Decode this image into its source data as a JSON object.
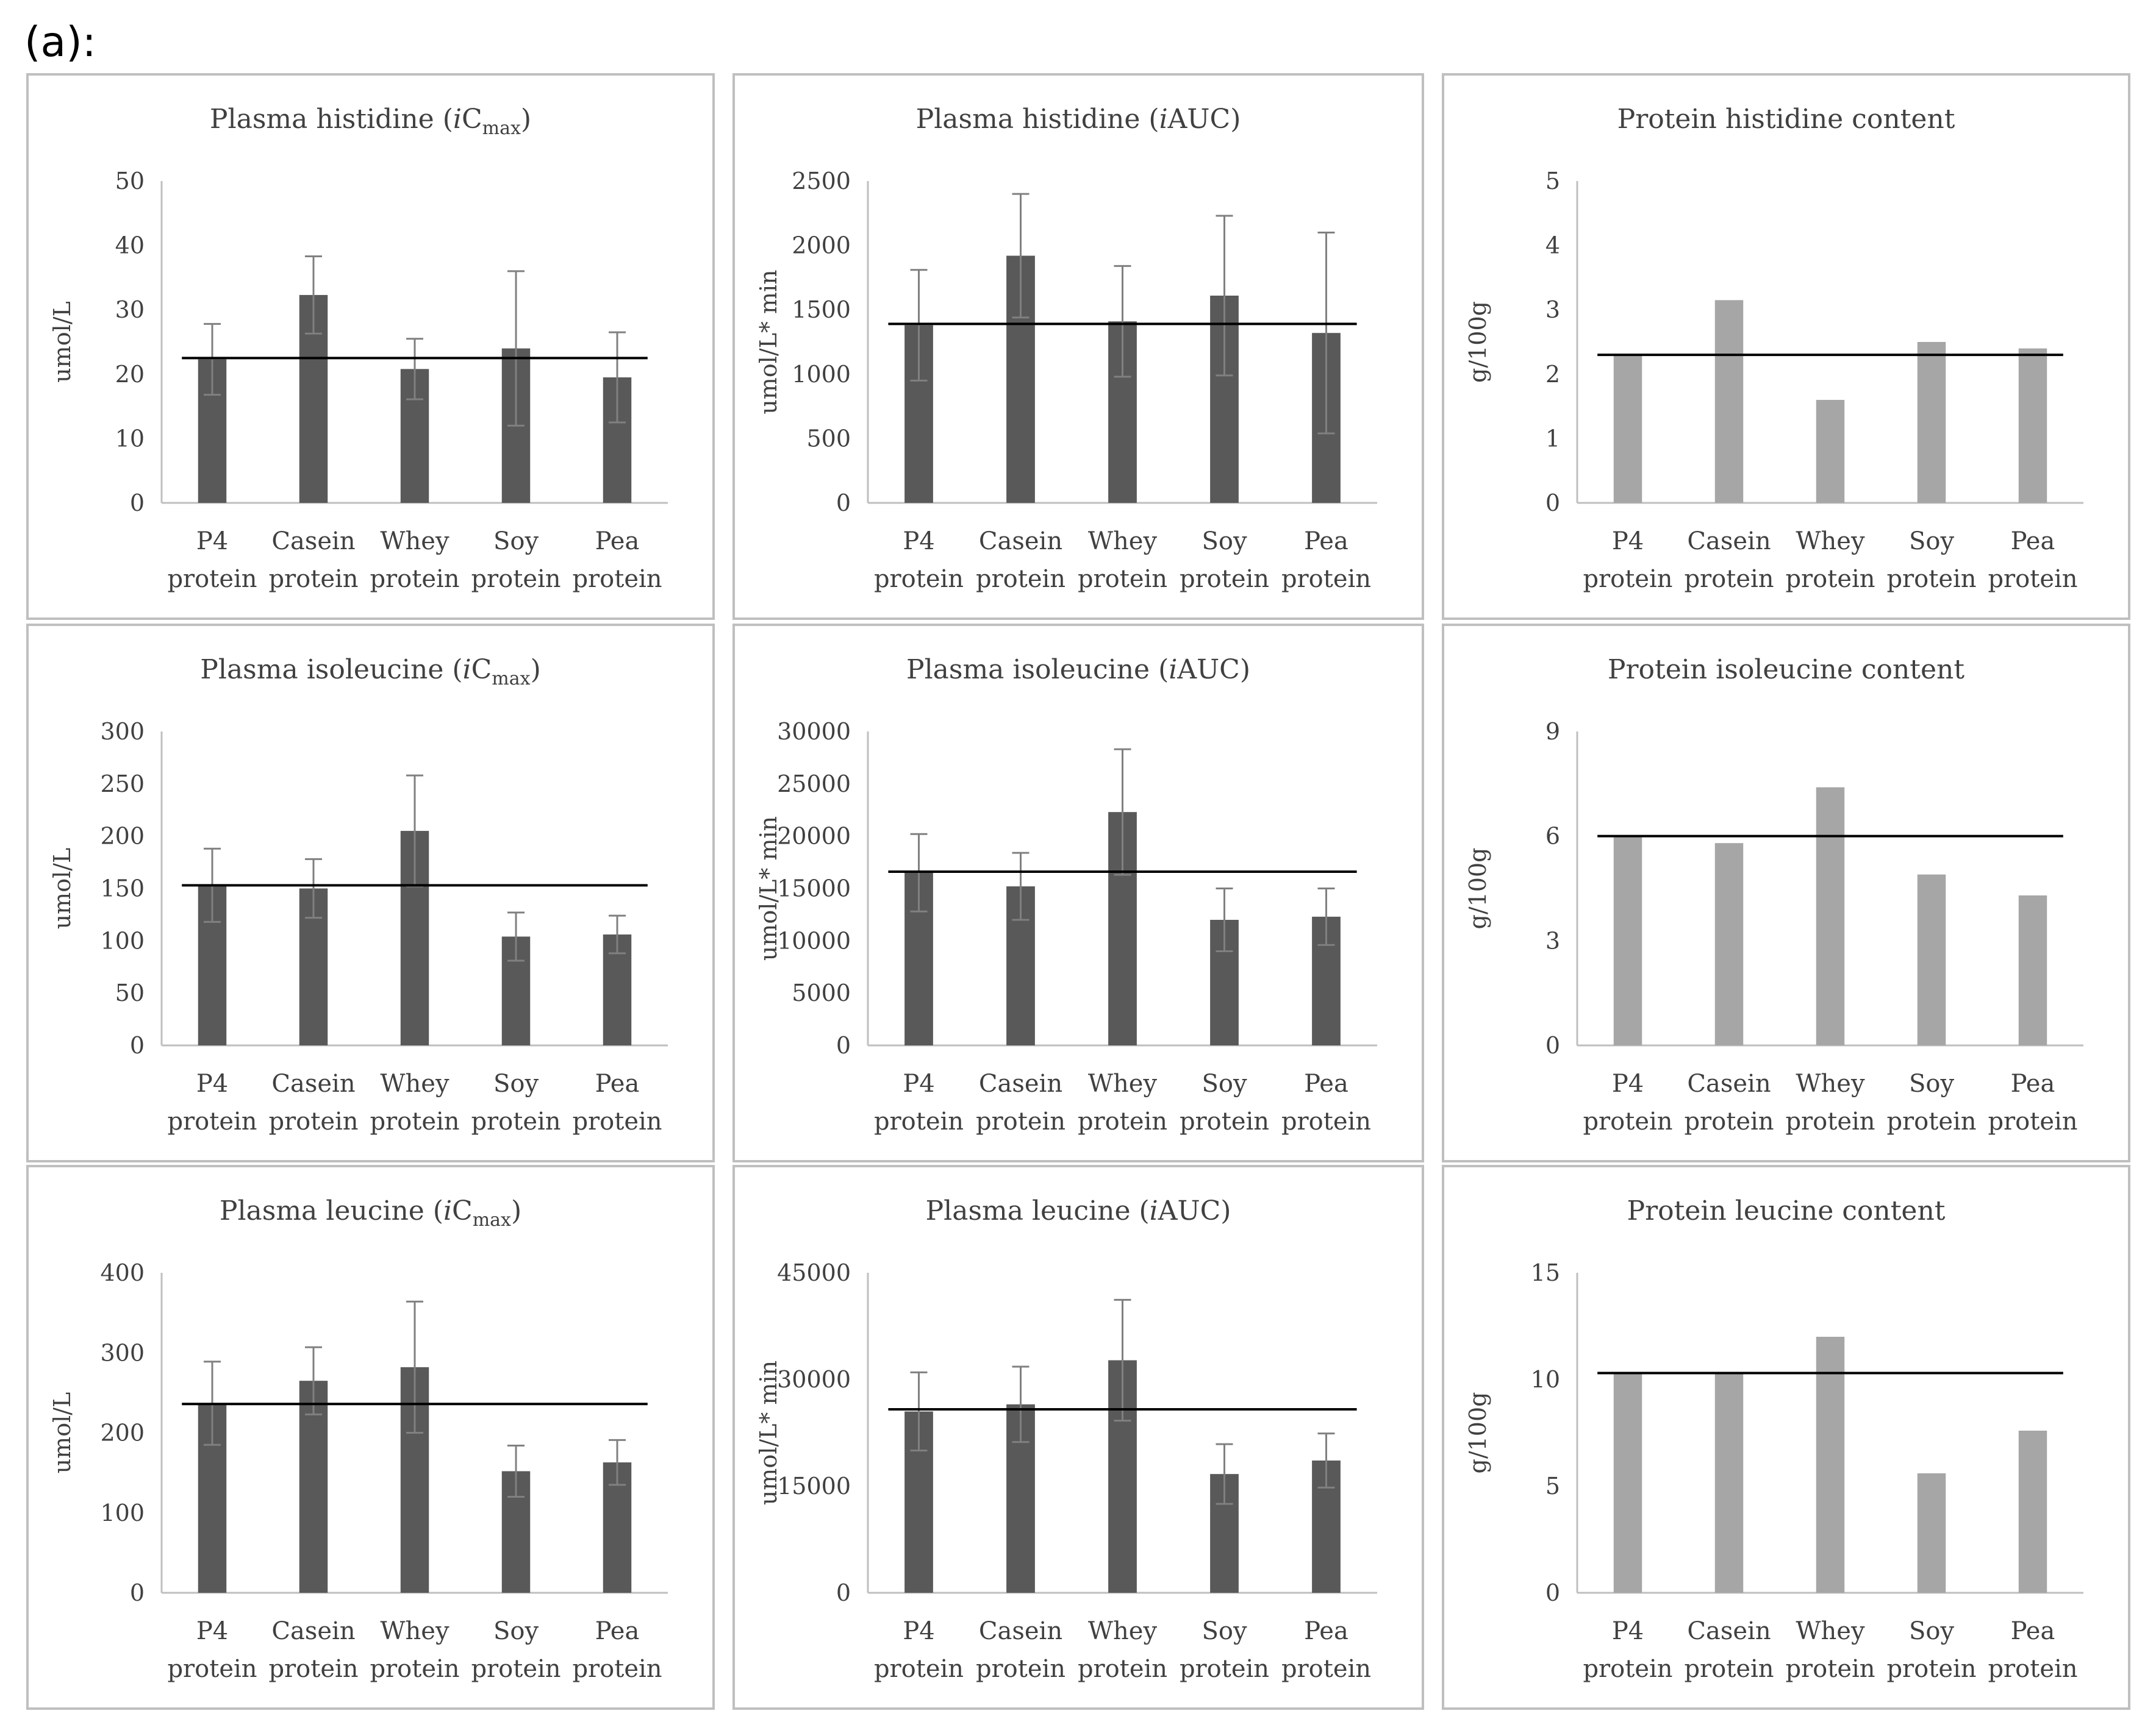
{
  "panel_label": "(a):",
  "colors": {
    "dark_bar": "#595959",
    "light_bar": "#a6a6a6",
    "reference_line": "#000000",
    "panel_border": "#bfbfbf"
  },
  "chart_data": [
    {
      "type": "bar",
      "title": {
        "pre": "Plasma histidine  (",
        "italic": "i",
        "main": "C",
        "sub": "max",
        "post": ")"
      },
      "ylabel": "umol/L",
      "categories": [
        [
          "P4",
          "protein"
        ],
        [
          "Casein",
          "protein"
        ],
        [
          "Whey",
          "protein"
        ],
        [
          "Soy",
          "protein"
        ],
        [
          "Pea",
          "protein"
        ]
      ],
      "values": [
        22.3,
        32.3,
        20.8,
        24.0,
        19.5
      ],
      "errors": [
        5.5,
        6.0,
        4.7,
        12.0,
        7.0
      ],
      "reference_line": 22.5,
      "ylim": [
        0,
        50
      ],
      "yticks": [
        0,
        10,
        20,
        30,
        40,
        50
      ],
      "bar_color": "dark"
    },
    {
      "type": "bar",
      "title": {
        "pre": "Plasma histidine  (",
        "italic": "i",
        "main": "AUC",
        "sub": "",
        "post": ")"
      },
      "ylabel": "umol/L* min",
      "categories": [
        [
          "P4",
          "protein"
        ],
        [
          "Casein",
          "protein"
        ],
        [
          "Whey",
          "protein"
        ],
        [
          "Soy",
          "protein"
        ],
        [
          "Pea",
          "protein"
        ]
      ],
      "values": [
        1380,
        1920,
        1410,
        1610,
        1320
      ],
      "errors": [
        430,
        480,
        430,
        620,
        780
      ],
      "reference_line": 1390,
      "ylim": [
        0,
        2500
      ],
      "yticks": [
        0,
        500,
        1000,
        1500,
        2000,
        2500
      ],
      "bar_color": "dark"
    },
    {
      "type": "bar",
      "title": {
        "pre": "Protein  histidine  content",
        "italic": "",
        "main": "",
        "sub": "",
        "post": ""
      },
      "ylabel": "g/100g",
      "categories": [
        [
          "P4",
          "protein"
        ],
        [
          "Casein",
          "protein"
        ],
        [
          "Whey",
          "protein"
        ],
        [
          "Soy",
          "protein"
        ],
        [
          "Pea",
          "protein"
        ]
      ],
      "values": [
        2.3,
        3.15,
        1.6,
        2.5,
        2.4
      ],
      "errors": null,
      "reference_line": 2.3,
      "ylim": [
        0,
        5
      ],
      "yticks": [
        0,
        1,
        2,
        3,
        4,
        5
      ],
      "bar_color": "light"
    },
    {
      "type": "bar",
      "title": {
        "pre": "Plasma isoleucine (",
        "italic": "i",
        "main": "C",
        "sub": "max",
        "post": ")"
      },
      "ylabel": "umol/L",
      "categories": [
        [
          "P4",
          "protein"
        ],
        [
          "Casein",
          "protein"
        ],
        [
          "Whey",
          "protein"
        ],
        [
          "Soy",
          "protein"
        ],
        [
          "Pea",
          "protein"
        ]
      ],
      "values": [
        153,
        150,
        205,
        104,
        106
      ],
      "errors": [
        35,
        28,
        53,
        23,
        18
      ],
      "reference_line": 153,
      "ylim": [
        0,
        300
      ],
      "yticks": [
        0,
        50,
        100,
        150,
        200,
        250,
        300
      ],
      "bar_color": "dark"
    },
    {
      "type": "bar",
      "title": {
        "pre": "Plasma isoleucine (",
        "italic": "i",
        "main": "AUC",
        "sub": "",
        "post": ")"
      },
      "ylabel": "umol/L* min",
      "categories": [
        [
          "P4",
          "protein"
        ],
        [
          "Casein",
          "protein"
        ],
        [
          "Whey",
          "protein"
        ],
        [
          "Soy",
          "protein"
        ],
        [
          "Pea",
          "protein"
        ]
      ],
      "values": [
        16500,
        15200,
        22300,
        12000,
        12300
      ],
      "errors": [
        3700,
        3200,
        6000,
        3000,
        2700
      ],
      "reference_line": 16600,
      "ylim": [
        0,
        30000
      ],
      "yticks": [
        0,
        5000,
        10000,
        15000,
        20000,
        25000,
        30000
      ],
      "bar_color": "dark"
    },
    {
      "type": "bar",
      "title": {
        "pre": "Protein isoleucine content",
        "italic": "",
        "main": "",
        "sub": "",
        "post": ""
      },
      "ylabel": "g/100g",
      "categories": [
        [
          "P4",
          "protein"
        ],
        [
          "Casein",
          "protein"
        ],
        [
          "Whey",
          "protein"
        ],
        [
          "Soy",
          "protein"
        ],
        [
          "Pea",
          "protein"
        ]
      ],
      "values": [
        6.0,
        5.8,
        7.4,
        4.9,
        4.3
      ],
      "errors": null,
      "reference_line": 6.0,
      "ylim": [
        0,
        9
      ],
      "yticks": [
        0,
        3,
        6,
        9
      ],
      "bar_color": "light"
    },
    {
      "type": "bar",
      "title": {
        "pre": "Plasma leucine (",
        "italic": "i",
        "main": "C",
        "sub": "max",
        "post": ")"
      },
      "ylabel": "umol/L",
      "categories": [
        [
          "P4",
          "protein"
        ],
        [
          "Casein",
          "protein"
        ],
        [
          "Whey",
          "protein"
        ],
        [
          "Soy",
          "protein"
        ],
        [
          "Pea",
          "protein"
        ]
      ],
      "values": [
        237,
        265,
        282,
        152,
        163
      ],
      "errors": [
        52,
        42,
        82,
        32,
        28
      ],
      "reference_line": 236,
      "ylim": [
        0,
        400
      ],
      "yticks": [
        0,
        100,
        200,
        300,
        400
      ],
      "bar_color": "dark"
    },
    {
      "type": "bar",
      "title": {
        "pre": "Plasma leucine (",
        "italic": "i",
        "main": "AUC",
        "sub": "",
        "post": ")"
      },
      "ylabel": "umol/L* min",
      "categories": [
        [
          "P4",
          "protein"
        ],
        [
          "Casein",
          "protein"
        ],
        [
          "Whey",
          "protein"
        ],
        [
          "Soy",
          "protein"
        ],
        [
          "Pea",
          "protein"
        ]
      ],
      "values": [
        25500,
        26500,
        32700,
        16700,
        18600
      ],
      "errors": [
        5500,
        5300,
        8500,
        4200,
        3800
      ],
      "reference_line": 25800,
      "ylim": [
        0,
        45000
      ],
      "yticks": [
        0,
        15000,
        30000,
        45000
      ],
      "bar_color": "dark"
    },
    {
      "type": "bar",
      "title": {
        "pre": "Protein leucine content",
        "italic": "",
        "main": "",
        "sub": "",
        "post": ""
      },
      "ylabel": "g/100g",
      "categories": [
        [
          "P4",
          "protein"
        ],
        [
          "Casein",
          "protein"
        ],
        [
          "Whey",
          "protein"
        ],
        [
          "Soy",
          "protein"
        ],
        [
          "Pea",
          "protein"
        ]
      ],
      "values": [
        10.3,
        10.3,
        12.0,
        5.6,
        7.6
      ],
      "errors": null,
      "reference_line": 10.3,
      "ylim": [
        0,
        15
      ],
      "yticks": [
        0,
        5,
        10,
        15
      ],
      "bar_color": "light"
    }
  ]
}
